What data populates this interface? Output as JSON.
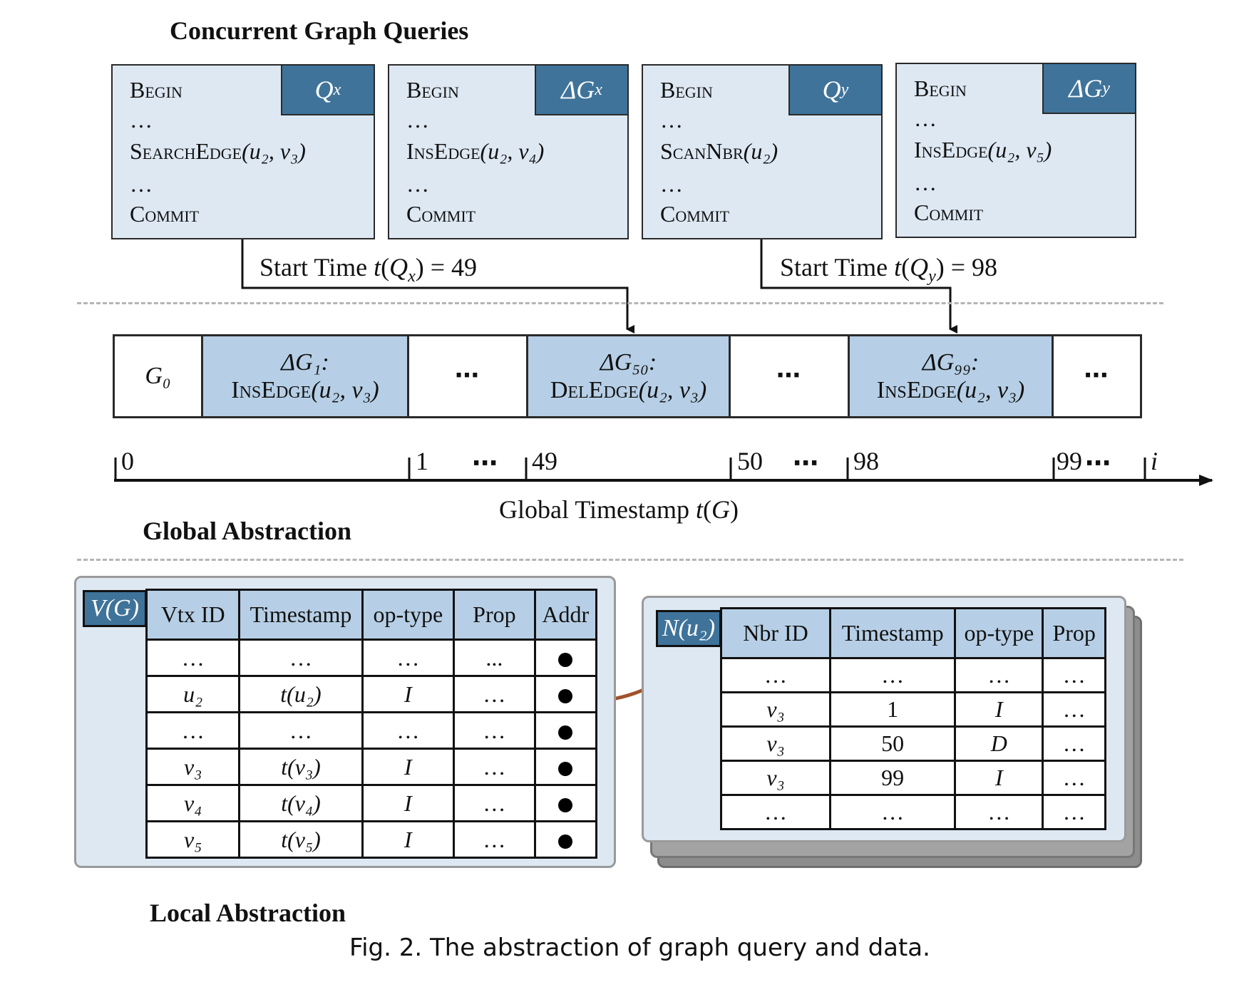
{
  "headings": {
    "concurrent": "Concurrent Graph Queries",
    "global": "Global Abstraction",
    "local": "Local Abstraction"
  },
  "queries": [
    {
      "tag": "Q",
      "tag_sub": "x",
      "begin": "Begin",
      "dots1": "…",
      "op": "SearchEdge",
      "args": "(u₂, v₃)",
      "dots2": "…",
      "commit": "Commit"
    },
    {
      "tag": "ΔG",
      "tag_sub": "x",
      "begin": "Begin",
      "dots1": "…",
      "op": "InsEdge",
      "args": "(u₂, v₄)",
      "dots2": "…",
      "commit": "Commit"
    },
    {
      "tag": "Q",
      "tag_sub": "y",
      "begin": "Begin",
      "dots1": "…",
      "op": "ScanNbr",
      "args": "(u₂)",
      "dots2": "…",
      "commit": "Commit"
    },
    {
      "tag": "ΔG",
      "tag_sub": "y",
      "begin": "Begin",
      "dots1": "…",
      "op": "InsEdge",
      "args": "(u₂, v₅)",
      "dots2": "…",
      "commit": "Commit"
    }
  ],
  "start_times": [
    {
      "text": "Start Time ",
      "expr": "t(Qₓ)",
      "eq": " = 49"
    },
    {
      "text": "Start Time ",
      "expr": "t(Q_y)",
      "eq": " = 98"
    }
  ],
  "timeline": {
    "cells": [
      {
        "label": "G₀",
        "kind": "white"
      },
      {
        "label": "ΔG₁:",
        "op": "InsEdge",
        "args": "(u₂, v₃)",
        "kind": "blue"
      },
      {
        "label": "⋯",
        "kind": "white"
      },
      {
        "label": "ΔG₅₀:",
        "op": "DelEdge",
        "args": "(u₂, v₃)",
        "kind": "blue"
      },
      {
        "label": "⋯",
        "kind": "white"
      },
      {
        "label": "ΔG₉₉:",
        "op": "InsEdge",
        "args": "(u₂, v₃)",
        "kind": "blue"
      },
      {
        "label": "⋯",
        "kind": "white"
      }
    ]
  },
  "axis": {
    "ticks": [
      "0",
      "1",
      "49",
      "50",
      "98",
      "99",
      "i"
    ],
    "ellipsis": "⋯",
    "label": "Global Timestamp ",
    "label_expr": "t(G)"
  },
  "vertex_table": {
    "tag": "V(G)",
    "headers": [
      "Vtx ID",
      "Timestamp",
      "op-type",
      "Prop",
      "Addr"
    ],
    "rows": [
      [
        "…",
        "…",
        "…",
        "...",
        ""
      ],
      [
        "u₂",
        "t(u₂)",
        "I",
        "…",
        ""
      ],
      [
        "…",
        "…",
        "…",
        "…",
        ""
      ],
      [
        "v₃",
        "t(v₃)",
        "I",
        "…",
        ""
      ],
      [
        "v₄",
        "t(v₄)",
        "I",
        "…",
        ""
      ],
      [
        "v₅",
        "t(v₅)",
        "I",
        "…",
        ""
      ]
    ]
  },
  "neighbor_table": {
    "tag": "N(u₂)",
    "headers": [
      "Nbr ID",
      "Timestamp",
      "op-type",
      "Prop"
    ],
    "rows": [
      [
        "…",
        "…",
        "…",
        "…"
      ],
      [
        "v₃",
        "1",
        "I",
        "…"
      ],
      [
        "v₃",
        "50",
        "D",
        "…"
      ],
      [
        "v₃",
        "99",
        "I",
        "…"
      ],
      [
        "…",
        "…",
        "…",
        "…"
      ]
    ]
  },
  "caption": "Fig. 2.  The abstraction of graph query and data.",
  "colors": {
    "box_fill": "#dde8f3",
    "tag_fill": "#3f739a",
    "header_fill": "#b6cfe6",
    "arrow_brown": "#a0522d",
    "dashed": "#b5b5b5"
  }
}
